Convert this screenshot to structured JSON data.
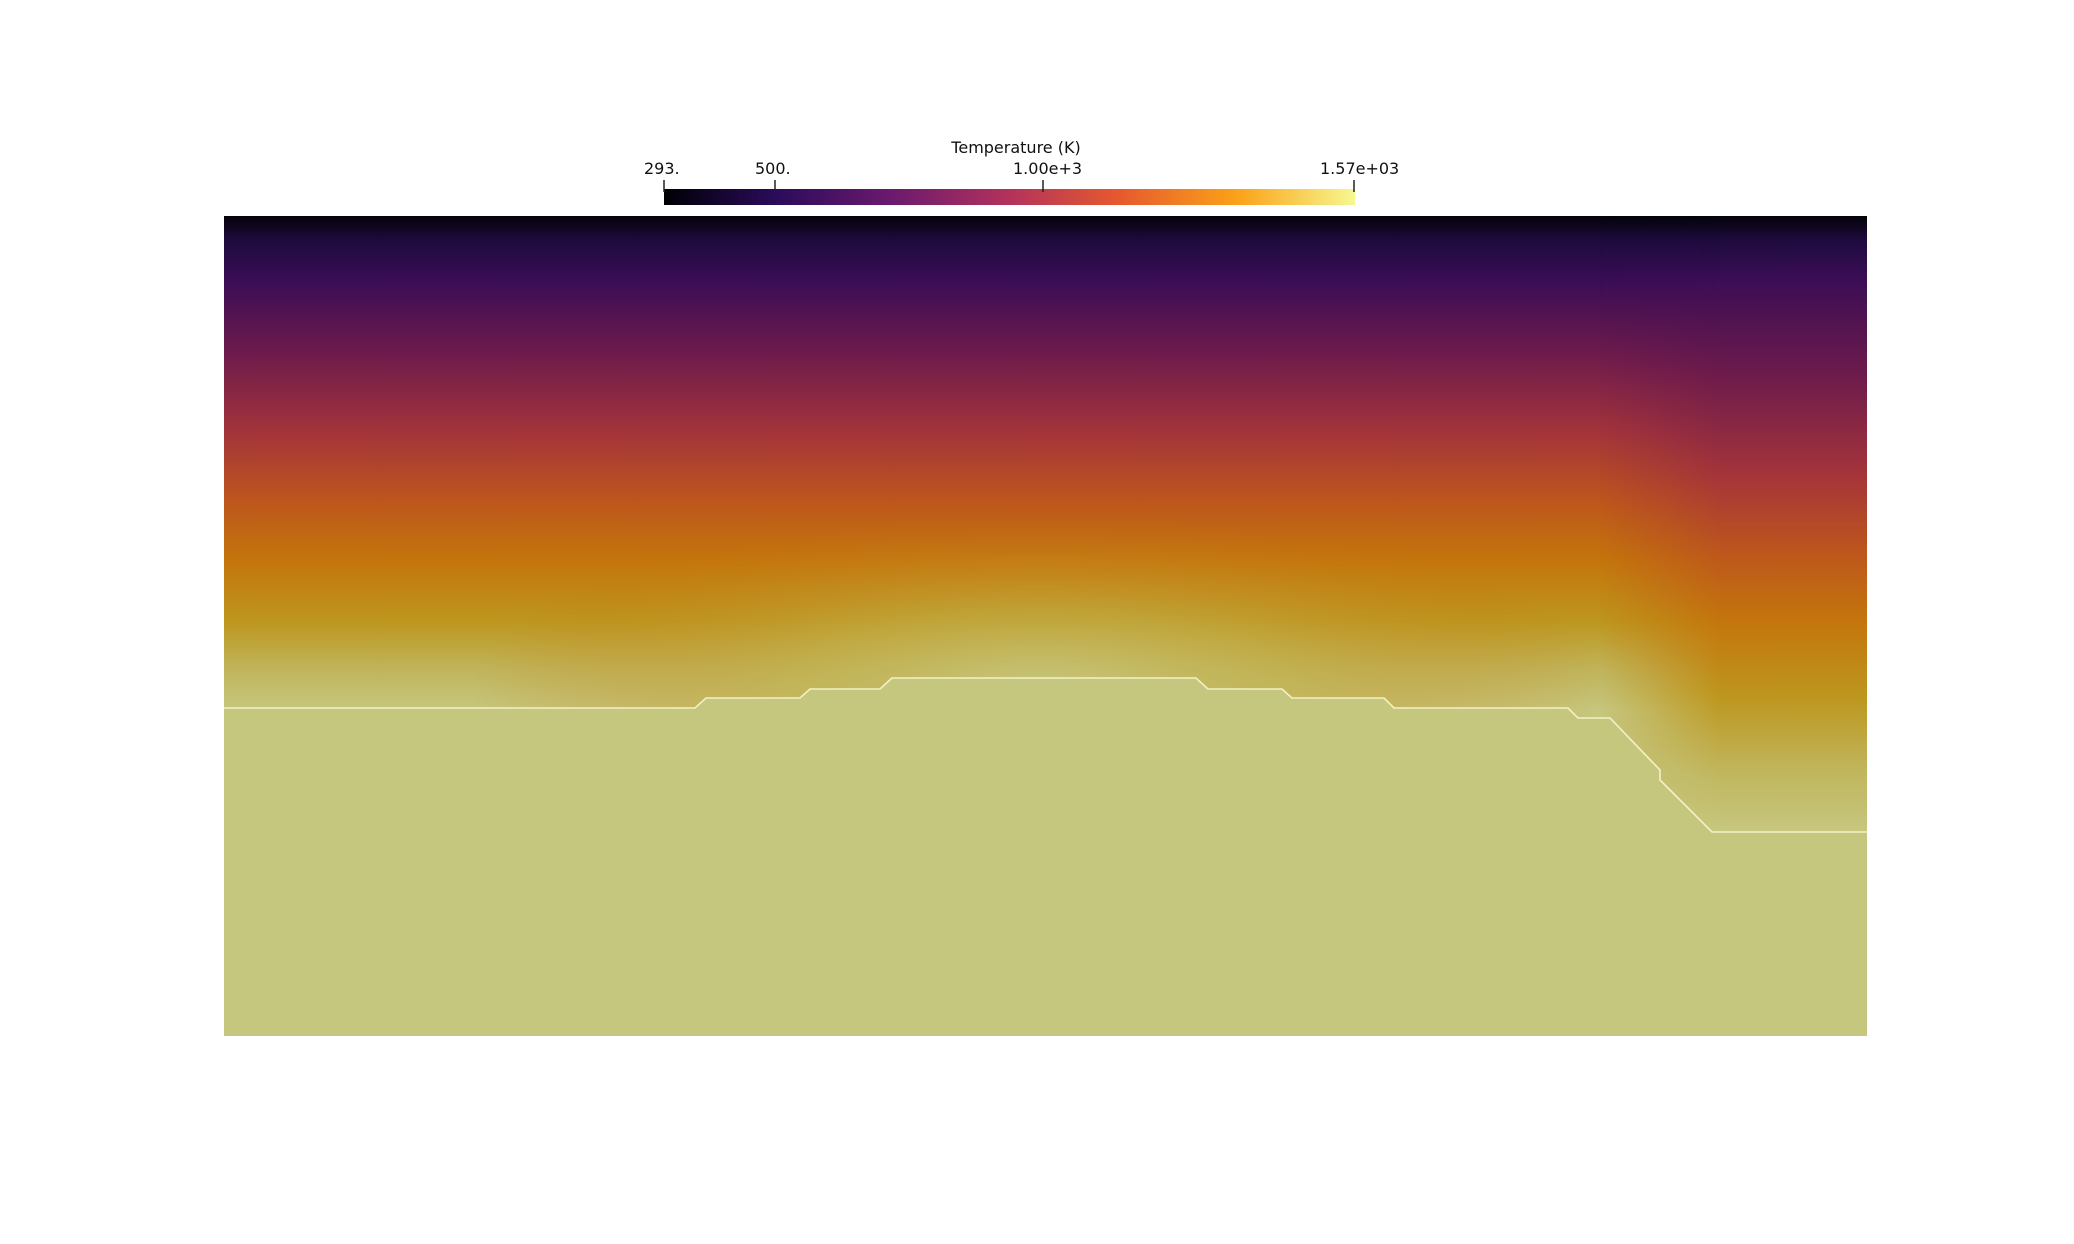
{
  "colorbar": {
    "title": "Temperature (K)",
    "ticks": [
      {
        "label": "293.",
        "value": 293
      },
      {
        "label": "500.",
        "value": 500
      },
      {
        "label": "1.00e+3",
        "value": 1000
      },
      {
        "label": "1.57e+03",
        "value": 1570
      }
    ],
    "range": [
      293,
      1570
    ],
    "colormap": "inferno",
    "colors": [
      "#000004",
      "#320a5e",
      "#781c6d",
      "#bc3754",
      "#ed6925",
      "#fbb61a",
      "#fcffa4"
    ]
  },
  "field": {
    "solid_color": "#c6c77f",
    "interface_line_color": "#f4f1c4"
  }
}
